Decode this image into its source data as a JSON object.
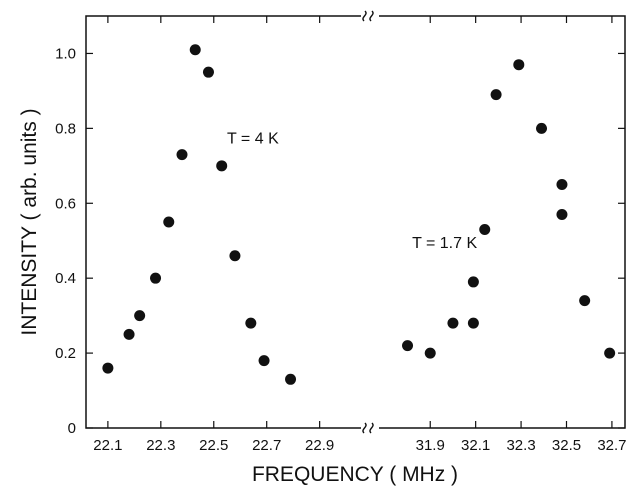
{
  "chart_data": {
    "type": "scatter",
    "title": "",
    "xlabel": "FREQUENCY ( MHz )",
    "ylabel": "INTENSITY ( arb. units )",
    "ylim": [
      0,
      1.1
    ],
    "y_ticks": [
      0,
      0.2,
      0.4,
      0.6,
      0.8,
      1.0
    ],
    "y_tick_labels": [
      "0",
      "0.2",
      "0.4",
      "0.6",
      "0.8",
      "1.0"
    ],
    "grid": false,
    "broken_x_axis": true,
    "panels": [
      {
        "xlim": [
          22.04,
          23.06
        ],
        "x_ticks": [
          22.1,
          22.3,
          22.5,
          22.7,
          22.9
        ],
        "x_tick_labels": [
          "22.1",
          "22.3",
          "22.5",
          "22.7",
          "22.9"
        ],
        "annotation": {
          "text": "T = 4 K",
          "x": 22.55,
          "y": 0.76
        },
        "points": [
          {
            "x": 22.1,
            "y": 0.16
          },
          {
            "x": 22.18,
            "y": 0.25
          },
          {
            "x": 22.22,
            "y": 0.3
          },
          {
            "x": 22.28,
            "y": 0.4
          },
          {
            "x": 22.33,
            "y": 0.55
          },
          {
            "x": 22.38,
            "y": 0.73
          },
          {
            "x": 22.43,
            "y": 1.01
          },
          {
            "x": 22.48,
            "y": 0.95
          },
          {
            "x": 22.53,
            "y": 0.7
          },
          {
            "x": 22.58,
            "y": 0.46
          },
          {
            "x": 22.64,
            "y": 0.28
          },
          {
            "x": 22.69,
            "y": 0.18
          },
          {
            "x": 22.79,
            "y": 0.13
          }
        ]
      },
      {
        "xlim": [
          31.67,
          32.74
        ],
        "x_ticks": [
          31.9,
          32.1,
          32.3,
          32.5,
          32.7
        ],
        "x_tick_labels": [
          "31.9",
          "32.1",
          "32.3",
          "32.5",
          "32.7"
        ],
        "annotation": {
          "text": "T = 1.7 K",
          "x": 31.82,
          "y": 0.48
        },
        "points": [
          {
            "x": 31.8,
            "y": 0.22
          },
          {
            "x": 31.9,
            "y": 0.2
          },
          {
            "x": 32.0,
            "y": 0.28
          },
          {
            "x": 32.09,
            "y": 0.28
          },
          {
            "x": 32.09,
            "y": 0.39
          },
          {
            "x": 32.14,
            "y": 0.53
          },
          {
            "x": 32.19,
            "y": 0.89
          },
          {
            "x": 32.29,
            "y": 0.97
          },
          {
            "x": 32.39,
            "y": 0.8
          },
          {
            "x": 32.48,
            "y": 0.65
          },
          {
            "x": 32.48,
            "y": 0.57
          },
          {
            "x": 32.58,
            "y": 0.34
          },
          {
            "x": 32.69,
            "y": 0.2
          }
        ]
      }
    ]
  }
}
